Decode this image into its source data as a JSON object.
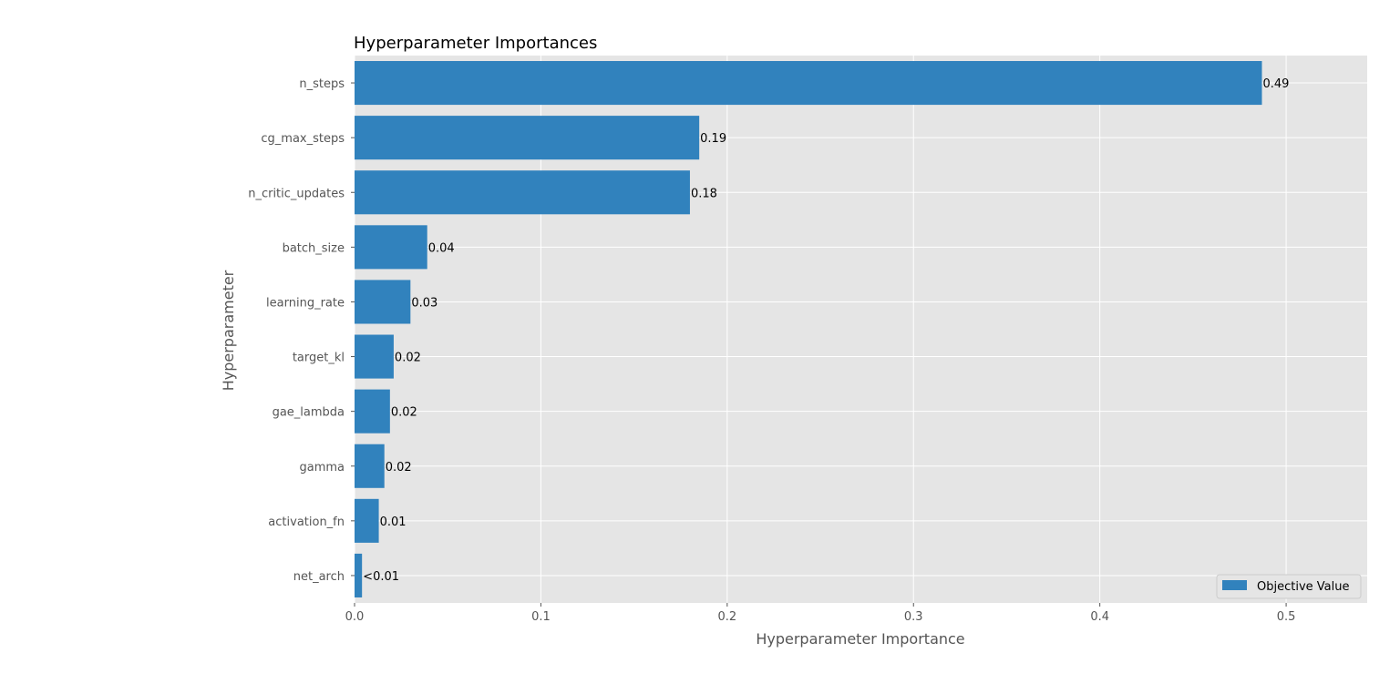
{
  "chart_data": {
    "type": "bar",
    "orientation": "horizontal",
    "title": "Hyperparameter Importances",
    "xlabel": "Hyperparameter Importance",
    "ylabel": "Hyperparameter",
    "categories": [
      "n_steps",
      "cg_max_steps",
      "n_critic_updates",
      "batch_size",
      "learning_rate",
      "target_kl",
      "gae_lambda",
      "gamma",
      "activation_fn",
      "net_arch"
    ],
    "values": [
      0.487,
      0.185,
      0.18,
      0.039,
      0.03,
      0.021,
      0.019,
      0.016,
      0.013,
      0.004
    ],
    "data_labels": [
      "0.49",
      "0.19",
      "0.18",
      "0.04",
      "0.03",
      "0.02",
      "0.02",
      "0.02",
      "0.01",
      "<0.01"
    ],
    "xlim": [
      0,
      0.5435
    ],
    "xticks": [
      0.0,
      0.1,
      0.2,
      0.3,
      0.4,
      0.5
    ],
    "xtick_labels": [
      "0.0",
      "0.1",
      "0.2",
      "0.3",
      "0.4",
      "0.5"
    ],
    "grid": true,
    "legend": {
      "entries": [
        "Objective Value"
      ],
      "position": "lower-right"
    },
    "colors": {
      "bar": "#3182bd",
      "background": "#e5e5e5",
      "grid": "#ffffff"
    }
  }
}
